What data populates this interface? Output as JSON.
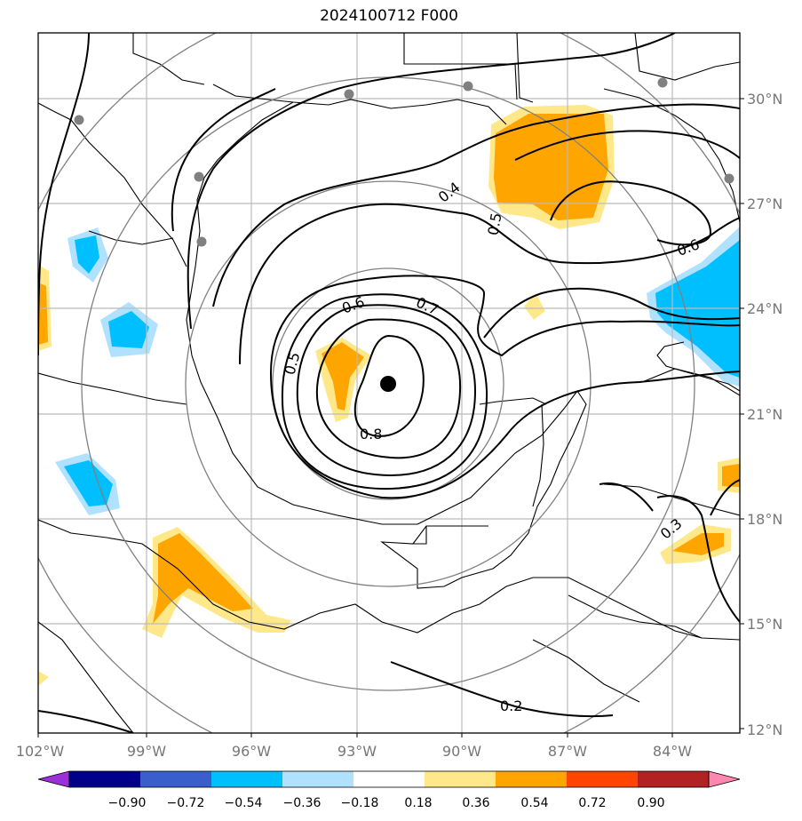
{
  "title": "2024100712 F000",
  "map": {
    "lon_range": [
      -102,
      -82
    ],
    "lat_range": [
      12,
      32
    ],
    "lon_ticks": [
      "102°W",
      "99°W",
      "96°W",
      "93°W",
      "90°W",
      "87°W",
      "84°W"
    ],
    "lat_ticks": [
      "12°N",
      "15°N",
      "18°N",
      "21°N",
      "24°N",
      "27°N",
      "30°N"
    ],
    "storm_center": {
      "lon": -92.3,
      "lat": 21.9
    },
    "station_markers": [
      {
        "lon": -100.8,
        "lat": 29.4
      },
      {
        "lon": -97.5,
        "lat": 27.8
      },
      {
        "lon": -97.4,
        "lat": 25.9
      },
      {
        "lon": -93.2,
        "lat": 30.1
      },
      {
        "lon": -89.9,
        "lat": 30.3
      },
      {
        "lon": -84.3,
        "lat": 30.4
      },
      {
        "lon": -82.5,
        "lat": 27.7
      }
    ],
    "range_rings": [
      "inner",
      "middle",
      "outer",
      "outermost"
    ],
    "contour_labels": [
      "0.4",
      "0.5",
      "0.6",
      "0.6",
      "0.7",
      "0.5",
      "0.8",
      "0.2",
      "0.3"
    ]
  },
  "colorbar": {
    "colors": [
      "#9b30d9",
      "#00008b",
      "#3a5fcd",
      "#00bfff",
      "#b0e2ff",
      "#ffffff",
      "#ffe88a",
      "#ffa500",
      "#ff4500",
      "#b22222",
      "#ff86b0"
    ],
    "tick_labels": [
      "−0.90",
      "−0.72",
      "−0.54",
      "−0.36",
      "−0.18",
      "0.18",
      "0.36",
      "0.54",
      "0.72",
      "0.90"
    ]
  }
}
